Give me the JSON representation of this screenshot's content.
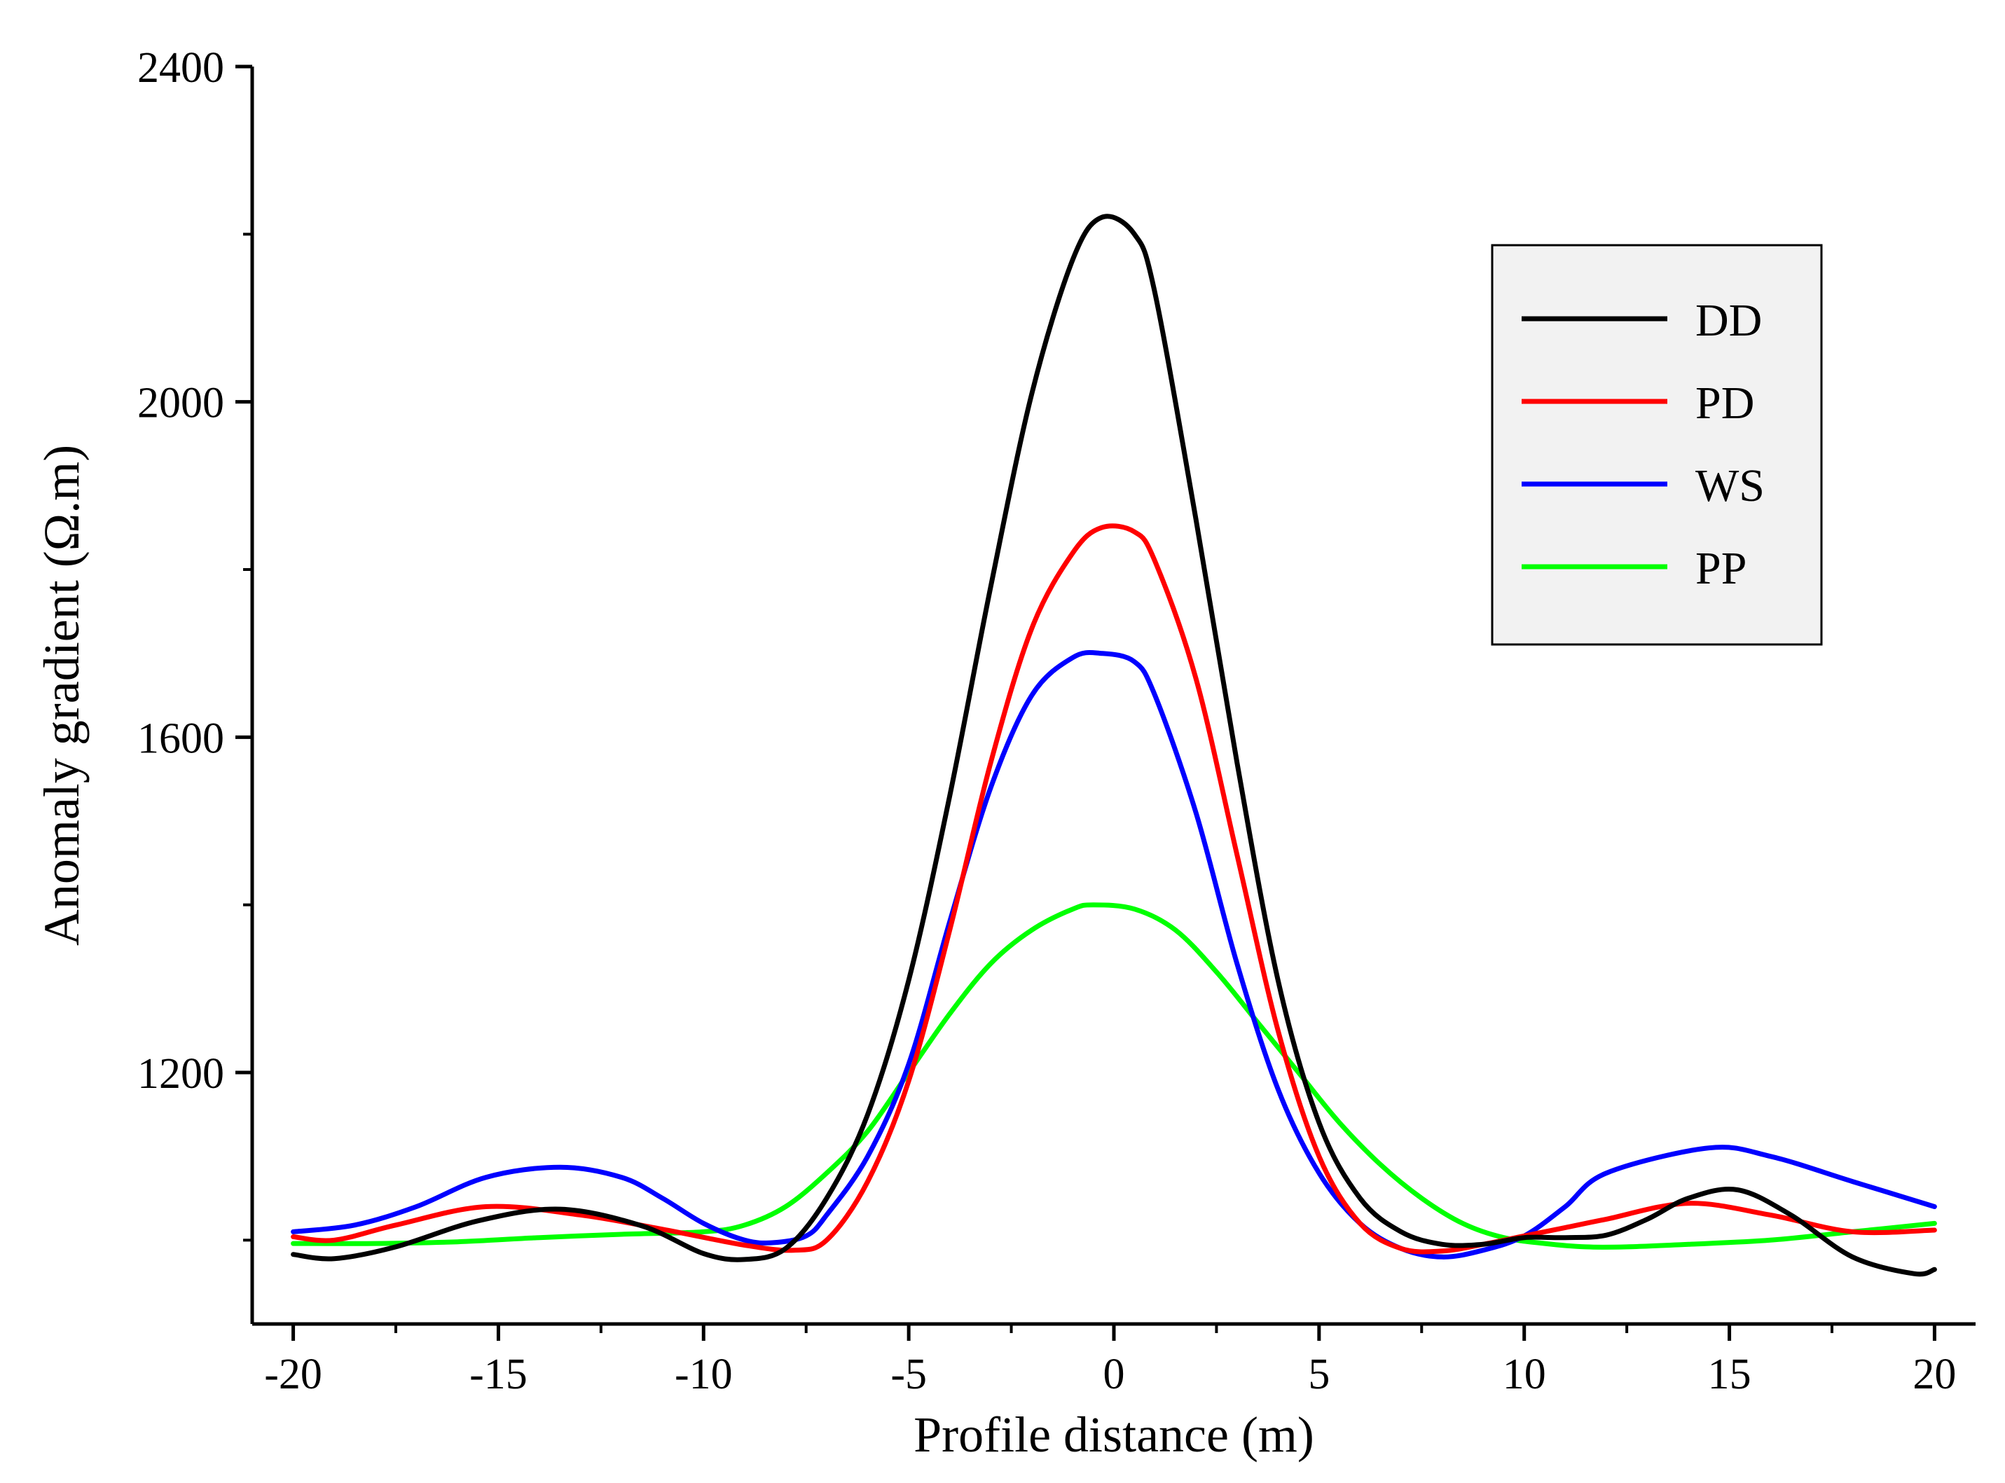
{
  "chart_data": {
    "type": "line",
    "title": "",
    "xlabel": "Profile distance (m)",
    "ylabel": "Anomaly gradient (Ω.m)",
    "xlim": [
      -21,
      21
    ],
    "ylim": [
      900,
      2400
    ],
    "xticks": [
      -20,
      -15,
      -10,
      -5,
      0,
      5,
      10,
      15,
      20
    ],
    "yticks": [
      1200,
      1600,
      2000,
      2400
    ],
    "grid": false,
    "legend_position": "top-right",
    "series": [
      {
        "name": "DD",
        "color": "#000000",
        "x": [
          -20,
          -19,
          -17.5,
          -15.5,
          -13.5,
          -11.5,
          -10,
          -9,
          -8,
          -7,
          -6,
          -5,
          -4,
          -3,
          -2,
          -1,
          -0.3,
          0.5,
          1,
          2,
          3,
          4,
          5,
          6,
          7,
          8,
          9,
          10,
          11,
          12,
          13,
          14,
          15.2,
          16.5,
          18,
          19.5,
          20
        ],
        "values": [
          983,
          978,
          992,
          1023,
          1037,
          1017,
          984,
          977,
          990,
          1050,
          1150,
          1310,
          1530,
          1780,
          2010,
          2170,
          2220,
          2200,
          2130,
          1860,
          1570,
          1310,
          1140,
          1050,
          1010,
          995,
          995,
          1003,
          1003,
          1006,
          1025,
          1050,
          1060,
          1030,
          980,
          960,
          965
        ]
      },
      {
        "name": "PD",
        "color": "#ff0000",
        "x": [
          -20,
          -19,
          -17.5,
          -15.3,
          -13,
          -11,
          -9,
          -7.8,
          -7,
          -6,
          -5,
          -4,
          -3,
          -2,
          -1,
          -0.3,
          0.5,
          1,
          2,
          3,
          4,
          5,
          6,
          7,
          8,
          9,
          10,
          11,
          12,
          14,
          16,
          18,
          20
        ],
        "values": [
          1004,
          1000,
          1018,
          1040,
          1030,
          1013,
          994,
          988,
          1000,
          1070,
          1190,
          1370,
          1570,
          1730,
          1820,
          1850,
          1845,
          1810,
          1670,
          1460,
          1250,
          1100,
          1020,
          990,
          987,
          995,
          1005,
          1015,
          1025,
          1044,
          1030,
          1010,
          1012
        ]
      },
      {
        "name": "WS",
        "color": "#0000ff",
        "x": [
          -20,
          -18.5,
          -17,
          -15.3,
          -13.5,
          -12,
          -11,
          -10,
          -9,
          -8.3,
          -7.5,
          -7,
          -6,
          -5,
          -4,
          -3,
          -2,
          -1,
          -0.3,
          0.5,
          1,
          2,
          3,
          4,
          5,
          6,
          7,
          8,
          9,
          10,
          11,
          12,
          14.5,
          16,
          18,
          20
        ],
        "values": [
          1010,
          1018,
          1040,
          1075,
          1087,
          1075,
          1050,
          1020,
          1000,
          997,
          1005,
          1030,
          1100,
          1210,
          1380,
          1540,
          1650,
          1695,
          1700,
          1690,
          1650,
          1510,
          1330,
          1180,
          1080,
          1020,
          990,
          980,
          988,
          1005,
          1040,
          1080,
          1110,
          1100,
          1070,
          1040
        ]
      },
      {
        "name": "PP",
        "color": "#00ff00",
        "x": [
          -20,
          -18,
          -16,
          -14,
          -12,
          -10,
          -9,
          -8,
          -7,
          -6,
          -5,
          -4,
          -3,
          -2,
          -1,
          -0.5,
          0.5,
          1.5,
          2.5,
          3.5,
          4.5,
          5.5,
          6.5,
          7.5,
          8.5,
          9.5,
          10.5,
          11.5,
          12.5,
          14,
          16,
          18,
          20
        ],
        "values": [
          996,
          996,
          998,
          1003,
          1007,
          1010,
          1018,
          1040,
          1080,
          1130,
          1200,
          1270,
          1330,
          1370,
          1395,
          1400,
          1395,
          1370,
          1320,
          1260,
          1200,
          1140,
          1090,
          1050,
          1020,
          1003,
          996,
          992,
          992,
          995,
          1000,
          1010,
          1020
        ]
      }
    ]
  }
}
